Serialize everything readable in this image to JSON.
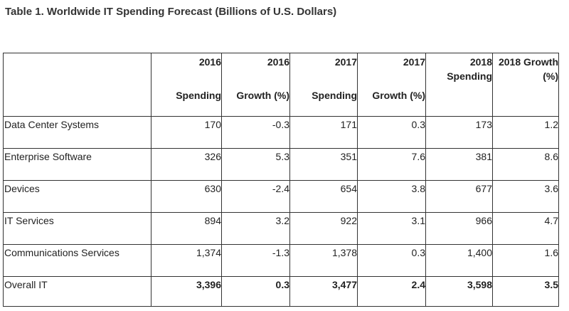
{
  "title": "Table 1. Worldwide IT Spending Forecast (Billions of U.S. Dollars)",
  "table": {
    "headers": [
      {
        "line1": "",
        "line2": ""
      },
      {
        "line1": "2016",
        "line2": "Spending"
      },
      {
        "line1": "2016",
        "line2": "Growth (%)"
      },
      {
        "line1": "2017",
        "line2": "Spending"
      },
      {
        "line1": "2017",
        "line2": "Growth (%)"
      },
      {
        "line1": "2018",
        "line2": "Spending"
      },
      {
        "line1": "2018 Growth",
        "line2": "(%)"
      }
    ],
    "rows": [
      {
        "label": "Data Center Systems",
        "values": [
          "170",
          "-0.3",
          "171",
          "0.3",
          "173",
          "1.2"
        ]
      },
      {
        "label": "Enterprise Software",
        "values": [
          "326",
          "5.3",
          "351",
          "7.6",
          "381",
          "8.6"
        ]
      },
      {
        "label": "Devices",
        "values": [
          "630",
          "-2.4",
          "654",
          "3.8",
          "677",
          "3.6"
        ]
      },
      {
        "label": "IT Services",
        "values": [
          "894",
          "3.2",
          "922",
          "3.1",
          "966",
          "4.7"
        ]
      },
      {
        "label": "Communications Services",
        "values": [
          "1,374",
          "-1.3",
          "1,378",
          "0.3",
          "1,400",
          "1.6"
        ]
      },
      {
        "label": "Overall IT",
        "values": [
          "3,396",
          "0.3",
          "3,477",
          "2.4",
          "3,598",
          "3.5"
        ]
      }
    ]
  }
}
